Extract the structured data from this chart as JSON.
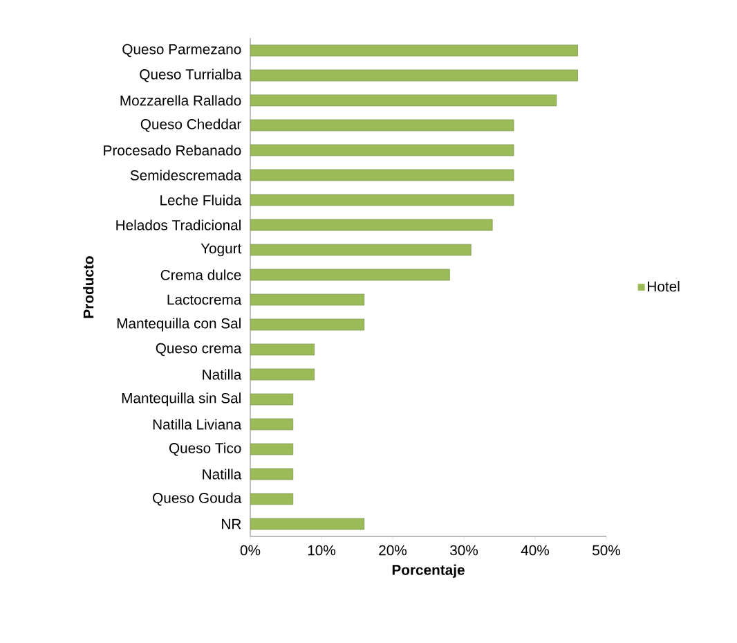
{
  "chart_data": {
    "type": "bar",
    "orientation": "horizontal",
    "xlabel": "Porcentaje",
    "ylabel": "Producto",
    "categories": [
      "Queso Parmezano",
      "Queso Turrialba",
      "Mozzarella Rallado",
      "Queso Cheddar",
      "Procesado Rebanado",
      "Semidescremada",
      "Leche Fluida",
      "Helados Tradicional",
      "Yogurt",
      "Crema dulce",
      "Lactocrema",
      "Mantequilla con Sal",
      "Queso crema",
      "Natilla",
      "Mantequilla sin Sal",
      "Natilla Liviana",
      "Queso Tico",
      "Natilla",
      "Queso Gouda",
      "NR"
    ],
    "series": [
      {
        "name": "Hotel",
        "color": "#9bbb59",
        "values": [
          46,
          46,
          43,
          37,
          37,
          37,
          37,
          34,
          31,
          28,
          16,
          16,
          9,
          9,
          6,
          6,
          6,
          6,
          6,
          16
        ]
      }
    ],
    "xlim": [
      0,
      50
    ],
    "xticks": [
      {
        "value": 0,
        "label": "0%"
      },
      {
        "value": 10,
        "label": "10%"
      },
      {
        "value": 20,
        "label": "20%"
      },
      {
        "value": 30,
        "label": "30%"
      },
      {
        "value": 40,
        "label": "40%"
      },
      {
        "value": 50,
        "label": "50%"
      }
    ],
    "legend": "right",
    "grid": false
  }
}
